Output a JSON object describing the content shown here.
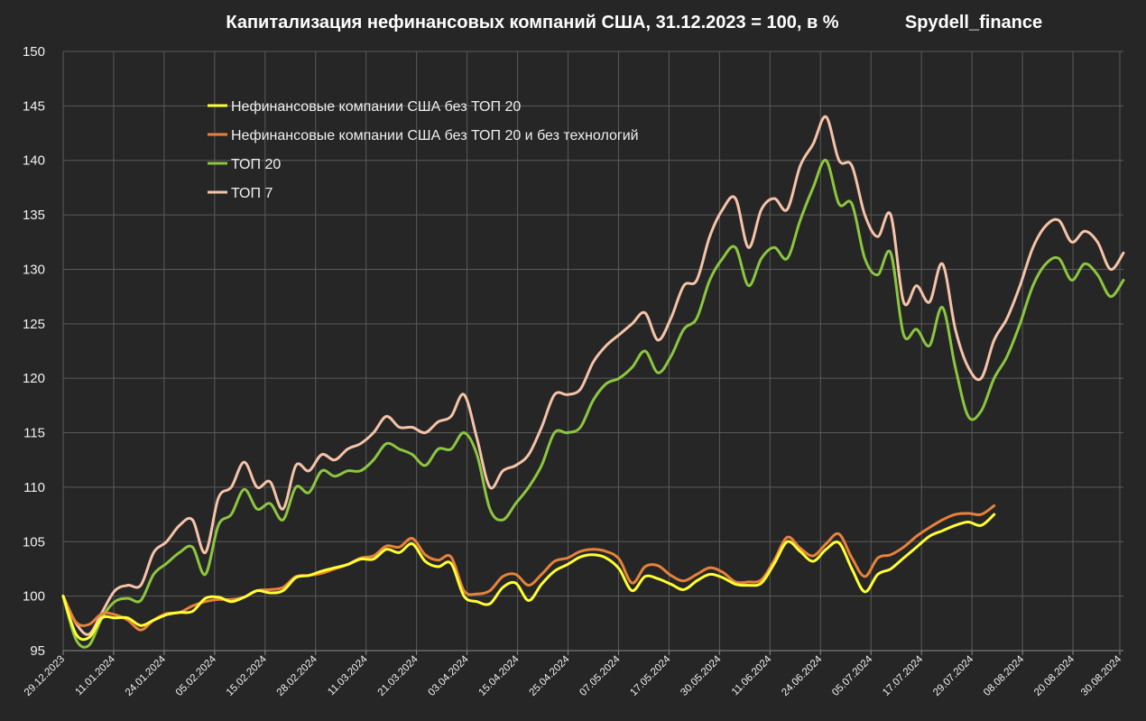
{
  "chart_data": {
    "type": "line",
    "title": "Капитализация нефинансовых компаний США, 31.12.2023 = 100, в %",
    "source_label": "Spydell_finance",
    "ylim": [
      95,
      150
    ],
    "yticks": [
      "95",
      "100",
      "105",
      "110",
      "115",
      "120",
      "125",
      "130",
      "135",
      "140",
      "145",
      "150"
    ],
    "xticks": [
      "29.12.2023",
      "11.01.2024",
      "24.01.2024",
      "05.02.2024",
      "15.02.2024",
      "28.02.2024",
      "11.03.2024",
      "21.03.2024",
      "03.04.2024",
      "15.04.2024",
      "25.04.2024",
      "07.05.2024",
      "17.05.2024",
      "30.05.2024",
      "11.06.2024",
      "24.06.2024",
      "05.07.2024",
      "17.07.2024",
      "29.07.2024",
      "08.08.2024",
      "20.08.2024",
      "30.08.2024"
    ],
    "grid": true,
    "legend_position": "top-left",
    "series": [
      {
        "name": "Нефинансовые компании США без ТОП 20",
        "color": "#ffff33",
        "points": [
          [
            0,
            100
          ],
          [
            2,
            96.5
          ],
          [
            4,
            96.2
          ],
          [
            6,
            98.0
          ],
          [
            8,
            98.0
          ],
          [
            10,
            98.0
          ],
          [
            12,
            97.3
          ],
          [
            14,
            97.8
          ],
          [
            16,
            98.3
          ],
          [
            18,
            98.5
          ],
          [
            20,
            98.6
          ],
          [
            22,
            99.8
          ],
          [
            24,
            99.9
          ],
          [
            26,
            99.5
          ],
          [
            28,
            99.9
          ],
          [
            30,
            100.5
          ],
          [
            32,
            100.3
          ],
          [
            34,
            100.5
          ],
          [
            36,
            101.7
          ],
          [
            38,
            101.9
          ],
          [
            40,
            102.3
          ],
          [
            42,
            102.6
          ],
          [
            44,
            102.9
          ],
          [
            46,
            103.4
          ],
          [
            48,
            103.4
          ],
          [
            50,
            104.3
          ],
          [
            52,
            104.0
          ],
          [
            54,
            104.8
          ],
          [
            56,
            103.2
          ],
          [
            58,
            102.7
          ],
          [
            60,
            103.0
          ],
          [
            62,
            100.0
          ],
          [
            64,
            99.5
          ],
          [
            66,
            99.3
          ],
          [
            68,
            100.8
          ],
          [
            70,
            101.2
          ],
          [
            72,
            99.6
          ],
          [
            74,
            101.1
          ],
          [
            76,
            102.3
          ],
          [
            78,
            102.9
          ],
          [
            80,
            103.6
          ],
          [
            82,
            103.8
          ],
          [
            84,
            103.5
          ],
          [
            86,
            102.5
          ],
          [
            88,
            100.5
          ],
          [
            90,
            101.8
          ],
          [
            92,
            101.6
          ],
          [
            94,
            101.1
          ],
          [
            96,
            100.6
          ],
          [
            98,
            101.4
          ],
          [
            100,
            102.0
          ],
          [
            102,
            101.7
          ],
          [
            104,
            101.1
          ],
          [
            106,
            101.0
          ],
          [
            108,
            101.2
          ],
          [
            110,
            103.0
          ],
          [
            112,
            105.0
          ],
          [
            114,
            104.1
          ],
          [
            116,
            103.2
          ],
          [
            118,
            104.3
          ],
          [
            120,
            104.9
          ],
          [
            122,
            102.5
          ],
          [
            124,
            100.4
          ],
          [
            126,
            102.0
          ],
          [
            128,
            102.5
          ],
          [
            130,
            103.5
          ],
          [
            132,
            104.5
          ],
          [
            134,
            105.5
          ],
          [
            136,
            106.0
          ],
          [
            138,
            106.5
          ],
          [
            140,
            106.8
          ],
          [
            142,
            106.5
          ],
          [
            144,
            107.5
          ]
        ]
      },
      {
        "name": "Нефинансовые компании США без ТОП 20 и без технологий",
        "color": "#e8823a",
        "points": [
          [
            0,
            100
          ],
          [
            2,
            97.6
          ],
          [
            4,
            97.4
          ],
          [
            6,
            98.4
          ],
          [
            8,
            98.3
          ],
          [
            10,
            97.8
          ],
          [
            12,
            96.9
          ],
          [
            14,
            97.8
          ],
          [
            16,
            98.4
          ],
          [
            18,
            98.5
          ],
          [
            20,
            99.1
          ],
          [
            22,
            99.5
          ],
          [
            24,
            99.7
          ],
          [
            26,
            99.7
          ],
          [
            28,
            99.9
          ],
          [
            30,
            100.5
          ],
          [
            32,
            100.6
          ],
          [
            34,
            100.8
          ],
          [
            36,
            101.8
          ],
          [
            38,
            101.9
          ],
          [
            40,
            102.1
          ],
          [
            42,
            102.5
          ],
          [
            44,
            102.9
          ],
          [
            46,
            103.5
          ],
          [
            48,
            103.7
          ],
          [
            50,
            104.6
          ],
          [
            52,
            104.5
          ],
          [
            54,
            105.3
          ],
          [
            56,
            103.8
          ],
          [
            58,
            103.3
          ],
          [
            60,
            103.6
          ],
          [
            62,
            100.5
          ],
          [
            64,
            100.2
          ],
          [
            66,
            100.5
          ],
          [
            68,
            101.8
          ],
          [
            70,
            102.0
          ],
          [
            72,
            101.0
          ],
          [
            74,
            102.0
          ],
          [
            76,
            103.2
          ],
          [
            78,
            103.5
          ],
          [
            80,
            104.1
          ],
          [
            82,
            104.3
          ],
          [
            84,
            104.1
          ],
          [
            86,
            103.4
          ],
          [
            88,
            101.2
          ],
          [
            90,
            102.7
          ],
          [
            92,
            102.8
          ],
          [
            94,
            101.9
          ],
          [
            96,
            101.4
          ],
          [
            98,
            102.0
          ],
          [
            100,
            102.6
          ],
          [
            102,
            102.2
          ],
          [
            104,
            101.3
          ],
          [
            106,
            101.3
          ],
          [
            108,
            101.5
          ],
          [
            110,
            103.3
          ],
          [
            112,
            105.4
          ],
          [
            114,
            104.4
          ],
          [
            116,
            103.7
          ],
          [
            118,
            104.8
          ],
          [
            120,
            105.7
          ],
          [
            122,
            103.5
          ],
          [
            124,
            101.8
          ],
          [
            126,
            103.5
          ],
          [
            128,
            103.8
          ],
          [
            130,
            104.5
          ],
          [
            132,
            105.5
          ],
          [
            134,
            106.3
          ],
          [
            136,
            107.0
          ],
          [
            138,
            107.5
          ],
          [
            140,
            107.6
          ],
          [
            142,
            107.5
          ],
          [
            144,
            108.3
          ]
        ]
      },
      {
        "name": "ТОП 20",
        "color": "#8cc63f",
        "points": [
          [
            0,
            100
          ],
          [
            2,
            96.0
          ],
          [
            4,
            95.5
          ],
          [
            6,
            98.0
          ],
          [
            8,
            99.5
          ],
          [
            10,
            99.8
          ],
          [
            12,
            99.6
          ],
          [
            14,
            102.0
          ],
          [
            16,
            103.0
          ],
          [
            18,
            104.0
          ],
          [
            20,
            104.5
          ],
          [
            22,
            102.0
          ],
          [
            24,
            106.5
          ],
          [
            26,
            107.5
          ],
          [
            28,
            109.8
          ],
          [
            30,
            108.0
          ],
          [
            32,
            108.5
          ],
          [
            34,
            107.0
          ],
          [
            36,
            110.0
          ],
          [
            38,
            109.5
          ],
          [
            40,
            111.5
          ],
          [
            42,
            111.0
          ],
          [
            44,
            111.5
          ],
          [
            46,
            111.5
          ],
          [
            48,
            112.5
          ],
          [
            50,
            114.0
          ],
          [
            52,
            113.5
          ],
          [
            54,
            113.0
          ],
          [
            56,
            112.0
          ],
          [
            58,
            113.5
          ],
          [
            60,
            113.5
          ],
          [
            62,
            115.0
          ],
          [
            64,
            113.0
          ],
          [
            66,
            108.0
          ],
          [
            68,
            107.0
          ],
          [
            70,
            108.5
          ],
          [
            72,
            110.0
          ],
          [
            74,
            112.0
          ],
          [
            76,
            115.0
          ],
          [
            78,
            115.0
          ],
          [
            80,
            115.5
          ],
          [
            82,
            118.0
          ],
          [
            84,
            119.5
          ],
          [
            86,
            120.0
          ],
          [
            88,
            121.0
          ],
          [
            90,
            122.5
          ],
          [
            92,
            120.5
          ],
          [
            94,
            122.0
          ],
          [
            96,
            124.5
          ],
          [
            98,
            125.5
          ],
          [
            100,
            129.0
          ],
          [
            102,
            131.0
          ],
          [
            104,
            132.0
          ],
          [
            106,
            128.5
          ],
          [
            108,
            131.0
          ],
          [
            110,
            132.0
          ],
          [
            112,
            131.0
          ],
          [
            114,
            134.5
          ],
          [
            116,
            137.5
          ],
          [
            118,
            140.0
          ],
          [
            120,
            136.0
          ],
          [
            122,
            136.0
          ],
          [
            124,
            131.0
          ],
          [
            126,
            129.5
          ],
          [
            128,
            131.5
          ],
          [
            130,
            124.0
          ],
          [
            132,
            124.5
          ],
          [
            134,
            123.0
          ],
          [
            136,
            126.5
          ],
          [
            138,
            121.0
          ],
          [
            140,
            116.5
          ],
          [
            142,
            117.0
          ],
          [
            144,
            120.0
          ],
          [
            146,
            122.0
          ],
          [
            148,
            125.0
          ],
          [
            150,
            128.5
          ],
          [
            152,
            130.5
          ],
          [
            154,
            131.0
          ],
          [
            156,
            129.0
          ],
          [
            158,
            130.5
          ],
          [
            160,
            129.5
          ],
          [
            162,
            127.5
          ],
          [
            164,
            129.0
          ]
        ]
      },
      {
        "name": "ТОП 7",
        "color": "#f6c3a8",
        "points": [
          [
            0,
            100
          ],
          [
            2,
            97.5
          ],
          [
            4,
            96.5
          ],
          [
            6,
            98.5
          ],
          [
            8,
            100.5
          ],
          [
            10,
            101.0
          ],
          [
            12,
            101.0
          ],
          [
            14,
            104.0
          ],
          [
            16,
            105.0
          ],
          [
            18,
            106.5
          ],
          [
            20,
            107.0
          ],
          [
            22,
            104.0
          ],
          [
            24,
            109.0
          ],
          [
            26,
            110.0
          ],
          [
            28,
            112.3
          ],
          [
            30,
            110.0
          ],
          [
            32,
            110.5
          ],
          [
            34,
            108.0
          ],
          [
            36,
            112.0
          ],
          [
            38,
            111.5
          ],
          [
            40,
            113.0
          ],
          [
            42,
            112.5
          ],
          [
            44,
            113.5
          ],
          [
            46,
            114.0
          ],
          [
            48,
            115.0
          ],
          [
            50,
            116.5
          ],
          [
            52,
            115.5
          ],
          [
            54,
            115.5
          ],
          [
            56,
            115.0
          ],
          [
            58,
            116.0
          ],
          [
            60,
            116.5
          ],
          [
            62,
            118.5
          ],
          [
            64,
            114.5
          ],
          [
            66,
            110.0
          ],
          [
            68,
            111.5
          ],
          [
            70,
            112.0
          ],
          [
            72,
            113.0
          ],
          [
            74,
            115.5
          ],
          [
            76,
            118.5
          ],
          [
            78,
            118.5
          ],
          [
            80,
            119.0
          ],
          [
            82,
            121.5
          ],
          [
            84,
            123.0
          ],
          [
            86,
            124.0
          ],
          [
            88,
            125.0
          ],
          [
            90,
            126.0
          ],
          [
            92,
            123.5
          ],
          [
            94,
            125.5
          ],
          [
            96,
            128.5
          ],
          [
            98,
            129.0
          ],
          [
            100,
            133.0
          ],
          [
            102,
            135.5
          ],
          [
            104,
            136.5
          ],
          [
            106,
            132.0
          ],
          [
            108,
            135.5
          ],
          [
            110,
            136.5
          ],
          [
            112,
            135.5
          ],
          [
            114,
            139.5
          ],
          [
            116,
            141.5
          ],
          [
            118,
            144.0
          ],
          [
            120,
            140.0
          ],
          [
            122,
            139.5
          ],
          [
            124,
            135.0
          ],
          [
            126,
            133.0
          ],
          [
            128,
            135.0
          ],
          [
            130,
            127.0
          ],
          [
            132,
            128.5
          ],
          [
            134,
            127.0
          ],
          [
            136,
            130.5
          ],
          [
            138,
            124.5
          ],
          [
            140,
            121.0
          ],
          [
            142,
            120.0
          ],
          [
            144,
            123.5
          ],
          [
            146,
            125.5
          ],
          [
            148,
            128.5
          ],
          [
            150,
            132.0
          ],
          [
            152,
            134.0
          ],
          [
            154,
            134.5
          ],
          [
            156,
            132.5
          ],
          [
            158,
            133.5
          ],
          [
            160,
            132.5
          ],
          [
            162,
            130.0
          ],
          [
            164,
            131.5
          ]
        ]
      }
    ]
  }
}
